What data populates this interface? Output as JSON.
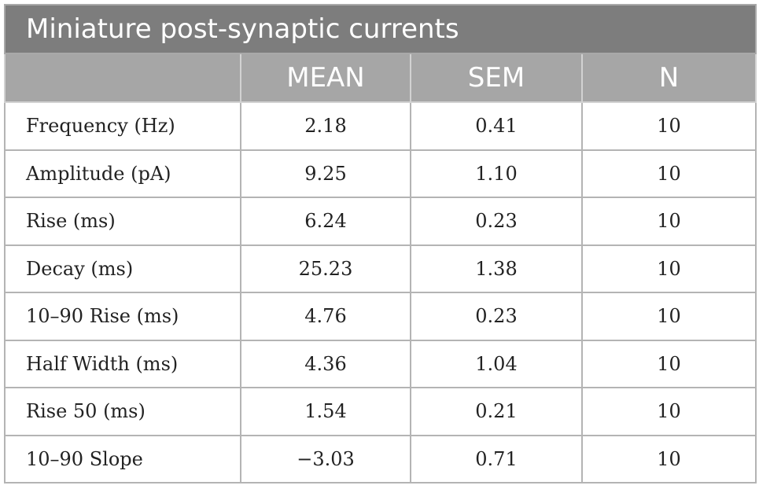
{
  "table": {
    "title": "Miniature post-synaptic currents",
    "headers": [
      "",
      "MEAN",
      "SEM",
      "N"
    ],
    "rows": [
      [
        "Frequency (Hz)",
        "2.18",
        "0.41",
        "10"
      ],
      [
        "Amplitude (pA)",
        "9.25",
        "1.10",
        "10"
      ],
      [
        "Rise (ms)",
        "6.24",
        "0.23",
        "10"
      ],
      [
        "Decay (ms)",
        "25.23",
        "1.38",
        "10"
      ],
      [
        "10–90 Rise (ms)",
        "4.76",
        "0.23",
        "10"
      ],
      [
        "Half Width (ms)",
        "4.36",
        "1.04",
        "10"
      ],
      [
        "Rise 50 (ms)",
        "1.54",
        "0.21",
        "10"
      ],
      [
        "10–90 Slope",
        "−3.03",
        "0.71",
        "10"
      ]
    ]
  },
  "colors": {
    "title_bg": "#7d7d7d",
    "header_bg": "#a6a6a6",
    "header_text": "#ffffff",
    "border": "#b4b4b4"
  }
}
